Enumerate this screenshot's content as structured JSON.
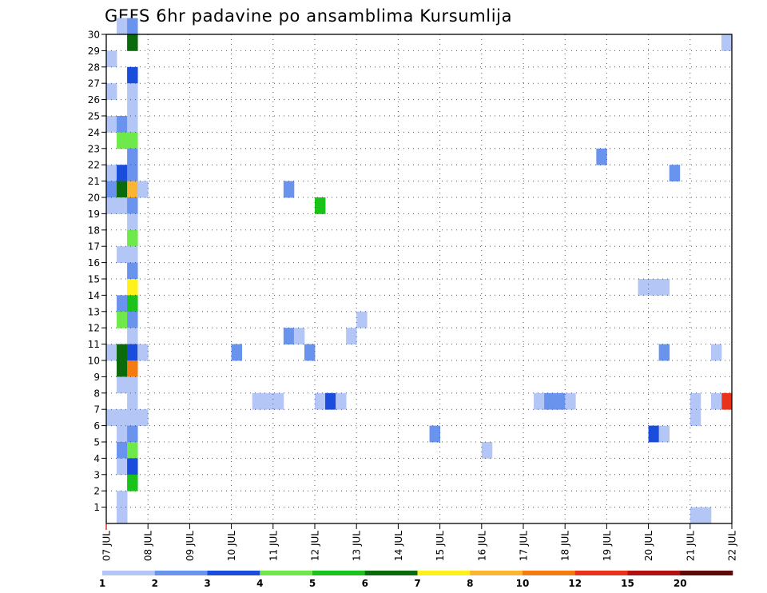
{
  "chart_data": {
    "type": "heatmap",
    "title": "GEFS 6hr padavine po ansamblima Kursumlija",
    "xlabel": "",
    "ylabel": "",
    "x_range": [
      0,
      60
    ],
    "y_range": [
      0,
      30
    ],
    "grid": true,
    "x_tick_labels": [
      "07 JUL",
      "08 JUL",
      "09 JUL",
      "10 JUL",
      "11 JUL",
      "12 JUL",
      "13 JUL",
      "14 JUL",
      "15 JUL",
      "16 JUL",
      "17 JUL",
      "18 JUL",
      "19 JUL",
      "20 JUL",
      "21 JUL",
      "22 JUL"
    ],
    "y_tick_labels": [
      "1",
      "2",
      "3",
      "4",
      "5",
      "6",
      "7",
      "8",
      "9",
      "10",
      "11",
      "12",
      "13",
      "14",
      "15",
      "16",
      "17",
      "18",
      "19",
      "20",
      "21",
      "22",
      "23",
      "24",
      "25",
      "26",
      "27",
      "28",
      "29",
      "30"
    ],
    "colorbar": {
      "labels": [
        "1",
        "2",
        "3",
        "4",
        "5",
        "6",
        "7",
        "8",
        "10",
        "12",
        "15",
        "20"
      ],
      "colors": [
        "#b4c6f5",
        "#6a93ee",
        "#1a4ddb",
        "#6fe84a",
        "#19c31a",
        "#0b6a0b",
        "#fff21a",
        "#fcb433",
        "#f57a12",
        "#e8321a",
        "#b01212",
        "#5e0808"
      ]
    },
    "cells": [
      [
        1,
        0,
        0
      ],
      [
        1,
        30,
        0
      ],
      [
        2,
        30,
        1
      ],
      [
        2,
        29,
        5
      ],
      [
        0,
        28,
        0
      ],
      [
        2,
        27,
        2
      ],
      [
        2,
        26,
        0
      ],
      [
        0,
        26,
        0
      ],
      [
        2,
        25,
        0
      ],
      [
        0,
        24,
        0
      ],
      [
        1,
        24,
        1
      ],
      [
        2,
        24,
        0
      ],
      [
        1,
        23,
        3
      ],
      [
        2,
        23,
        3
      ],
      [
        2,
        22,
        1
      ],
      [
        0,
        21,
        0
      ],
      [
        1,
        21,
        2
      ],
      [
        2,
        21,
        1
      ],
      [
        0,
        20,
        1
      ],
      [
        1,
        20,
        5
      ],
      [
        2,
        20,
        7
      ],
      [
        3,
        20,
        0
      ],
      [
        0,
        19,
        0
      ],
      [
        1,
        19,
        0
      ],
      [
        2,
        19,
        1
      ],
      [
        2,
        18,
        0
      ],
      [
        2,
        17,
        3
      ],
      [
        1,
        16,
        0
      ],
      [
        2,
        16,
        0
      ],
      [
        2,
        15,
        1
      ],
      [
        2,
        14,
        6
      ],
      [
        1,
        13,
        1
      ],
      [
        2,
        13,
        4
      ],
      [
        1,
        12,
        3
      ],
      [
        2,
        12,
        1
      ],
      [
        2,
        11,
        0
      ],
      [
        0,
        10,
        0
      ],
      [
        1,
        10,
        5
      ],
      [
        2,
        10,
        2
      ],
      [
        3,
        10,
        0
      ],
      [
        1,
        9,
        5
      ],
      [
        2,
        9,
        8
      ],
      [
        1,
        8,
        0
      ],
      [
        2,
        8,
        0
      ],
      [
        2,
        7,
        0
      ],
      [
        0,
        6,
        0
      ],
      [
        1,
        6,
        0
      ],
      [
        2,
        6,
        0
      ],
      [
        3,
        6,
        0
      ],
      [
        1,
        5,
        0
      ],
      [
        2,
        5,
        1
      ],
      [
        1,
        4,
        1
      ],
      [
        2,
        4,
        3
      ],
      [
        1,
        3,
        0
      ],
      [
        2,
        3,
        2
      ],
      [
        2,
        2,
        4
      ],
      [
        1,
        1,
        0
      ],
      [
        19,
        10,
        1
      ],
      [
        17,
        11,
        1
      ],
      [
        18,
        11,
        0
      ],
      [
        17,
        20,
        1
      ],
      [
        20,
        19,
        4
      ],
      [
        31,
        5,
        1
      ],
      [
        24,
        12,
        0
      ],
      [
        23,
        11,
        0
      ],
      [
        47,
        22,
        1
      ],
      [
        56,
        0,
        0
      ],
      [
        57,
        0,
        0
      ],
      [
        36,
        4,
        0
      ],
      [
        12,
        10,
        1
      ],
      [
        52,
        5,
        2
      ],
      [
        53,
        5,
        0
      ],
      [
        53,
        10,
        1
      ],
      [
        53,
        14,
        0
      ],
      [
        51,
        14,
        0
      ],
      [
        52,
        14,
        0
      ],
      [
        20,
        7,
        0
      ],
      [
        21,
        7,
        2
      ],
      [
        22,
        7,
        0
      ],
      [
        56,
        6,
        0
      ],
      [
        56,
        7,
        0
      ],
      [
        14,
        7,
        0
      ],
      [
        15,
        7,
        0
      ],
      [
        16,
        7,
        0
      ],
      [
        41,
        7,
        0
      ],
      [
        42,
        7,
        1
      ],
      [
        43,
        7,
        1
      ],
      [
        44,
        7,
        0
      ],
      [
        59,
        7,
        9
      ],
      [
        58,
        7,
        0
      ],
      [
        54,
        21,
        1
      ],
      [
        58,
        10,
        0
      ],
      [
        59,
        29,
        0
      ]
    ]
  }
}
